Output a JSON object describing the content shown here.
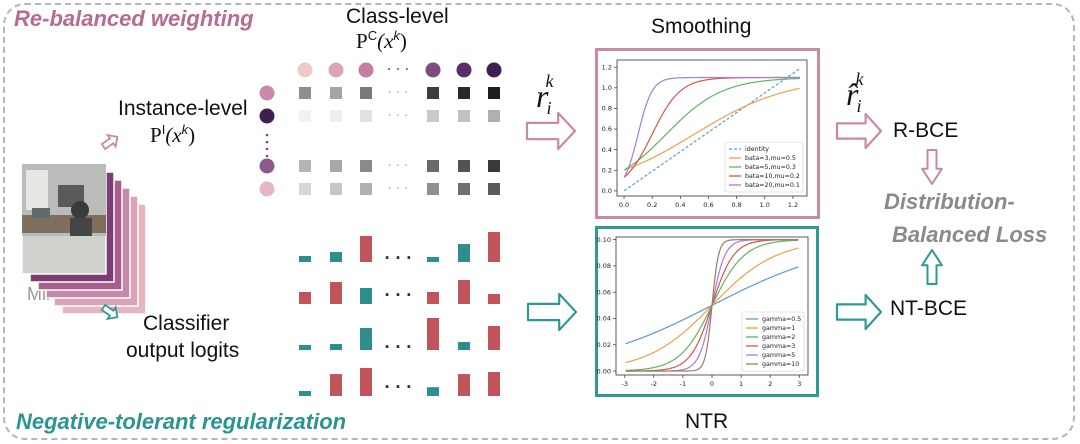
{
  "colors": {
    "pink": "#c98aa5",
    "pink_title": "#b86b91",
    "teal": "#2e9a96",
    "teal_title": "#2a9590",
    "red_bar": "#c1545a",
    "teal_bar": "#2e8e8e",
    "gray_title": "#8a8a8a",
    "mini_batch": "#9a9a9a"
  },
  "titles": {
    "rebalanced": "Re-balanced weighting",
    "negative_tolerant": "Negative-tolerant regularization",
    "class_level": "Class-level",
    "class_level_formula": "P",
    "class_level_sup": "C",
    "class_level_arg": "(x",
    "class_level_arg_sup": "k",
    "class_level_close": ")",
    "instance_level": "Instance-level",
    "instance_formula": "P",
    "instance_sup": "I",
    "instance_arg": "(x",
    "instance_arg_sup": "k",
    "instance_close": ")",
    "mini_batch": "Mini-batch",
    "classifier_line1": "Classifier",
    "classifier_line2": "output logits",
    "smoothing": "Smoothing",
    "ntr": "NTR",
    "r_symbol": "r",
    "r_sub": "i",
    "r_sup": "k",
    "rhat_symbol": "r̂",
    "rhat_sub": "i",
    "rhat_sup": "k",
    "rbce": "R-BCE",
    "ntbce": "NT-BCE",
    "dbl_line1": "Distribution-",
    "dbl_line2": "Balanced Loss",
    "ellipsis": "· · ·"
  },
  "chart_data": [
    {
      "type": "line",
      "name": "smoothing-plot",
      "xlim": [
        -0.05,
        1.3
      ],
      "ylim": [
        -0.05,
        1.27
      ],
      "x_ticks": [
        "0.0",
        "0.2",
        "0.4",
        "0.6",
        "0.8",
        "1.0",
        "1.2"
      ],
      "y_ticks": [
        "0.0",
        "0.2",
        "0.4",
        "0.6",
        "0.8",
        "1.0",
        "1.2"
      ],
      "x_tick_values": [
        0,
        0.2,
        0.4,
        0.6,
        0.8,
        1.0,
        1.2
      ],
      "y_tick_values": [
        0,
        0.2,
        0.4,
        0.6,
        0.8,
        1.0,
        1.2
      ],
      "legend_position": "bottom-right",
      "series": [
        {
          "name": "identity",
          "color": "#5b9bd5",
          "dashed": true,
          "kind": "identity"
        },
        {
          "name": "bata=3,mu=0.5",
          "color": "#f0a04b",
          "beta": 3,
          "mu": 0.5
        },
        {
          "name": "bata=5,mu=0.3",
          "color": "#5cb85c",
          "beta": 5,
          "mu": 0.3
        },
        {
          "name": "bata=10,mu=0.2",
          "color": "#d9534f",
          "beta": 10,
          "mu": 0.2
        },
        {
          "name": "bata=20,mu=0.1",
          "color": "#a57fd1",
          "beta": 20,
          "mu": 0.1
        }
      ]
    },
    {
      "type": "line",
      "name": "ntr-plot",
      "xlim": [
        -3.3,
        3.3
      ],
      "ylim": [
        -0.003,
        0.102
      ],
      "x_ticks": [
        "-3",
        "-2",
        "-1",
        "0",
        "1",
        "2",
        "3"
      ],
      "y_ticks": [
        "0.00",
        "0.02",
        "0.04",
        "0.06",
        "0.08",
        "0.10"
      ],
      "x_tick_values": [
        -3,
        -2,
        -1,
        0,
        1,
        2,
        3
      ],
      "y_tick_values": [
        0,
        0.02,
        0.04,
        0.06,
        0.08,
        0.1
      ],
      "legend_position": "bottom-right",
      "series": [
        {
          "name": "gamma=0.5",
          "color": "#5b9bd5",
          "gamma": 0.5
        },
        {
          "name": "gamma=1",
          "color": "#f0a04b",
          "gamma": 1
        },
        {
          "name": "gamma=2",
          "color": "#5cb85c",
          "gamma": 2
        },
        {
          "name": "gamma=3",
          "color": "#d9534f",
          "gamma": 3
        },
        {
          "name": "gamma=5",
          "color": "#a57fd1",
          "gamma": 5
        },
        {
          "name": "gamma=10",
          "color": "#9b7b6b",
          "gamma": 10
        }
      ]
    }
  ],
  "dots": {
    "class_top_colors": [
      "#eccacb",
      "#d9a6b5",
      "#c47e9e",
      "#7e4d7e",
      "#5a2f68",
      "#3f1f52"
    ],
    "instance_left_colors": [
      "#c78aa8",
      "#3f1f52",
      "#8e5a8a",
      "#e3b9c3"
    ],
    "instance_rows": [
      [
        "#8e8e8e",
        "#a5a5a5",
        "#7a7a7a",
        "#3e3e3e",
        "#2a2a2a",
        "#1e1e1e"
      ],
      [
        "#f2f2f2",
        "#eeeeee",
        "#e2e2e2",
        "#c9c9c9",
        "#c0c0c0",
        "#b0b0b0"
      ],
      [
        "#b5b5b5",
        "#a8a8a8",
        "#8a8a8a",
        "#6a6a6a",
        "#545454",
        "#3a3a3a"
      ],
      [
        "#d7d7d7",
        "#c6c6c6",
        "#b1b1b1",
        "#8f8f8f",
        "#707070",
        "#5a5a5a"
      ]
    ]
  },
  "logit_bars": {
    "columns": 6,
    "rows": [
      [
        {
          "c": "teal",
          "h": -0.15
        },
        {
          "c": "teal",
          "h": -0.25
        },
        {
          "c": "red",
          "h": -0.65
        },
        {
          "c": "teal",
          "h": -0.12
        },
        {
          "c": "teal",
          "h": -0.45
        },
        {
          "c": "red",
          "h": -0.75
        }
      ],
      [
        {
          "c": "red",
          "h": 0.3
        },
        {
          "c": "red",
          "h": 0.55
        },
        {
          "c": "teal",
          "h": 0.4
        },
        {
          "c": "red",
          "h": 0.3
        },
        {
          "c": "red",
          "h": 0.6
        },
        {
          "c": "red",
          "h": 0.25
        }
      ],
      [
        {
          "c": "teal",
          "h": -0.12
        },
        {
          "c": "teal",
          "h": -0.15
        },
        {
          "c": "teal",
          "h": -0.55
        },
        {
          "c": "red",
          "h": -0.8
        },
        {
          "c": "teal",
          "h": -0.2
        },
        {
          "c": "red",
          "h": -0.6
        }
      ],
      [
        {
          "c": "teal",
          "h": 0.12
        },
        {
          "c": "red",
          "h": 0.55
        },
        {
          "c": "red",
          "h": 0.7
        },
        {
          "c": "teal",
          "h": 0.22
        },
        {
          "c": "red",
          "h": 0.55
        },
        {
          "c": "red",
          "h": 0.6
        }
      ]
    ]
  }
}
